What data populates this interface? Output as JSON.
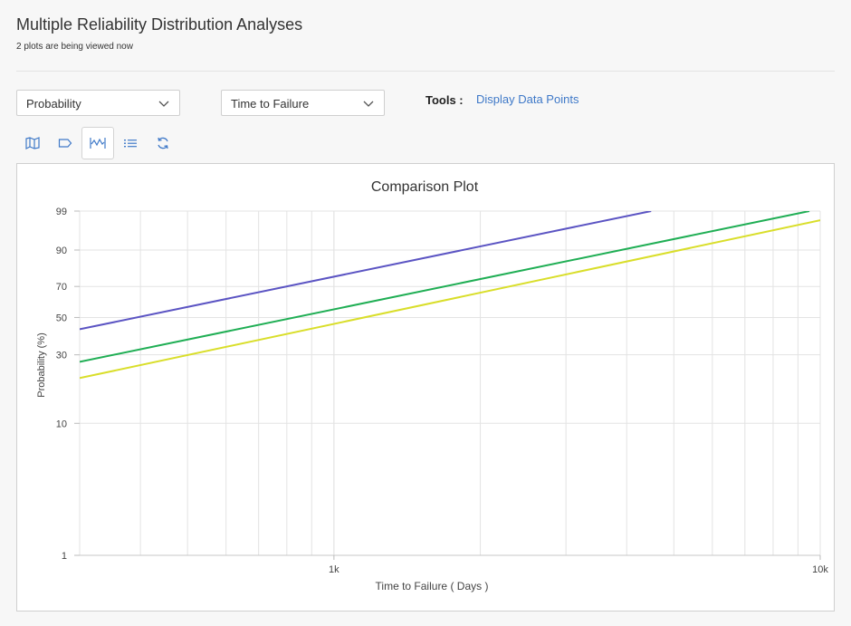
{
  "page": {
    "title": "Multiple Reliability Distribution Analyses",
    "subtitle": "2 plots are being viewed now"
  },
  "controls": {
    "plot_type": {
      "selected": "Probability"
    },
    "x_variable": {
      "selected": "Time to Failure"
    },
    "tools_label": "Tools :",
    "tools_link": "Display Data Points"
  },
  "toolbar": {
    "icons": [
      "map-icon",
      "tag-icon",
      "comparison-plot-icon",
      "list-icon",
      "refresh-icon"
    ],
    "active": "comparison-plot-icon"
  },
  "colors": {
    "link": "#3f79c8",
    "series_1": "#5b54c3",
    "series_2": "#1fae54",
    "series_3": "#d9de2a"
  },
  "chart_data": {
    "type": "line",
    "title": "Comparison Plot",
    "xlabel": "Time to Failure ( Days )",
    "ylabel": "Probability (%)",
    "x_scale": "log",
    "y_scale": "weibull-probability",
    "xlim": [
      300,
      10000
    ],
    "ylim": [
      1,
      99
    ],
    "x_tick_labels": [
      {
        "value": 1000,
        "label": "1k"
      },
      {
        "value": 10000,
        "label": "10k"
      }
    ],
    "y_ticks": [
      1,
      10,
      30,
      50,
      70,
      90,
      99
    ],
    "grid": true,
    "series": [
      {
        "x": [
          300,
          4490
        ],
        "y": [
          43,
          99
        ],
        "color": "#5b54c3"
      },
      {
        "x": [
          300,
          9500
        ],
        "y": [
          27,
          99
        ],
        "color": "#1fae54"
      },
      {
        "x": [
          300,
          10000
        ],
        "y": [
          21,
          98
        ],
        "color": "#d9de2a"
      }
    ]
  }
}
